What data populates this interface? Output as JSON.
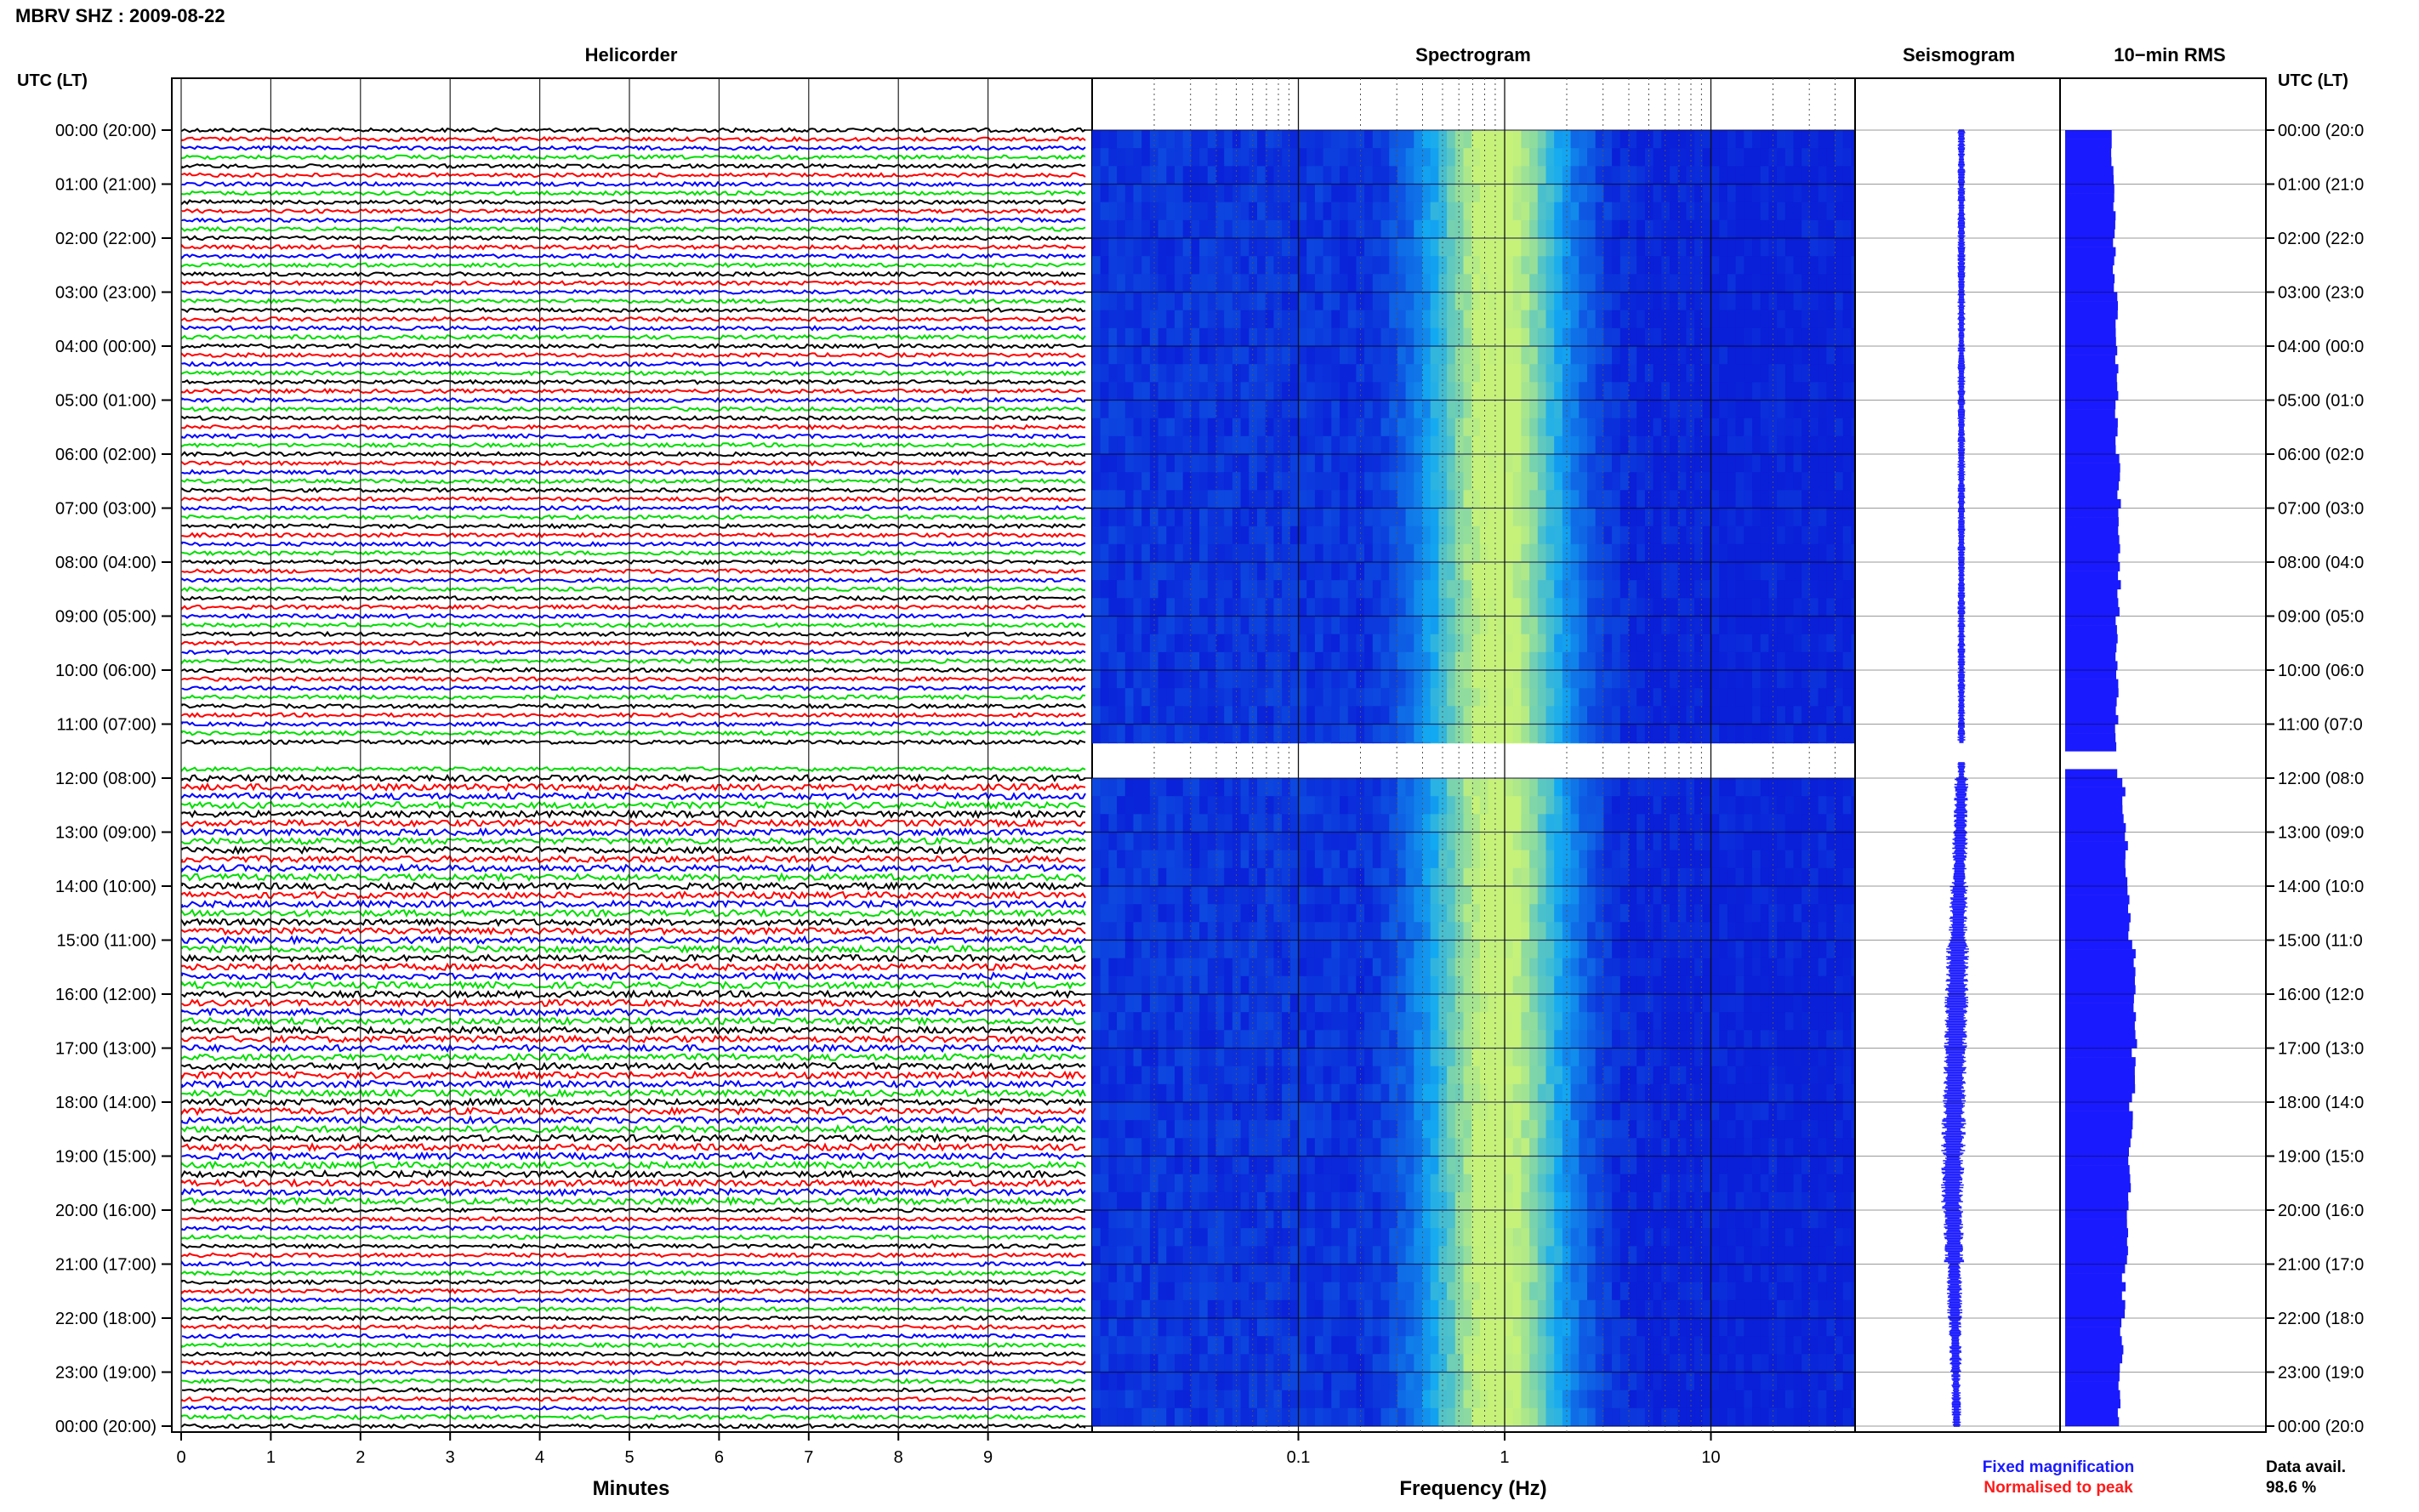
{
  "station_title": "MBRV SHZ : 2009-08-22",
  "panel_titles": {
    "helicorder": "Helicorder",
    "spectrogram": "Spectrogram",
    "seismogram": "Seismogram",
    "rms": "10−min RMS"
  },
  "axis_header_left": "UTC (LT)",
  "axis_header_right": "UTC (LT)",
  "xlabel_helicorder": "Minutes",
  "xlabel_spectrogram": "Frequency (Hz)",
  "legend": {
    "fixed": "Fixed magnification",
    "normalised": "Normalised to peak",
    "fixed_color": "#1a1aff",
    "normalised_color": "#ff1a1a"
  },
  "data_availability": {
    "label": "Data avail.",
    "value": "98.6 %"
  },
  "colors": {
    "trace_cycle": [
      "#000000",
      "#ff0000",
      "#0000ff",
      "#00dd00"
    ],
    "spectro_dark": "#0a1fd8",
    "spectro_mid": "#13a9f2",
    "spectro_peak": "#c6f27a",
    "rms_bar": "#1a1aff"
  },
  "chart_data": [
    {
      "type": "line",
      "title": "Helicorder",
      "xlabel": "Minutes",
      "x_ticks": [
        "0",
        "1",
        "2",
        "3",
        "4",
        "5",
        "6",
        "7",
        "8",
        "9"
      ],
      "xlim": [
        0,
        10
      ],
      "time_labels_left": [
        "00:00 (20:00)",
        "01:00 (21:00)",
        "02:00 (22:00)",
        "03:00 (23:00)",
        "04:00 (00:00)",
        "05:00 (01:00)",
        "06:00 (02:00)",
        "07:00 (03:00)",
        "08:00 (04:00)",
        "09:00 (05:00)",
        "10:00 (06:00)",
        "11:00 (07:00)",
        "12:00 (08:00)",
        "13:00 (09:00)",
        "14:00 (10:00)",
        "15:00 (11:00)",
        "16:00 (12:00)",
        "17:00 (13:00)",
        "18:00 (14:00)",
        "19:00 (15:00)",
        "20:00 (16:00)",
        "21:00 (17:00)",
        "22:00 (18:00)",
        "23:00 (19:00)",
        "00:00 (20:00)"
      ],
      "time_labels_right": [
        "00:00 (20:0",
        "01:00 (21:0",
        "02:00 (22:0",
        "03:00 (23:0",
        "04:00 (00:0",
        "05:00 (01:0",
        "06:00 (02:0",
        "07:00 (03:0",
        "08:00 (04:0",
        "09:00 (05:0",
        "10:00 (06:0",
        "11:00 (07:0",
        "12:00 (08:0",
        "13:00 (09:0",
        "14:00 (10:0",
        "15:00 (11:0",
        "16:00 (12:0",
        "17:00 (13:0",
        "18:00 (14:0",
        "19:00 (15:0",
        "20:00 (16:0",
        "21:00 (17:0",
        "22:00 (18:0",
        "23:00 (19:0",
        "00:00 (20:0"
      ],
      "traces_per_hour": 6,
      "gap_hours": [
        11.35,
        11.7
      ]
    },
    {
      "type": "heatmap",
      "title": "Spectrogram",
      "xlabel": "Frequency (Hz)",
      "x_scale": "log",
      "xlim": [
        0.01,
        50
      ],
      "x_tick_labels": [
        "0.1",
        "1",
        "10"
      ],
      "peak_frequency_hz": 1.0
    },
    {
      "type": "line",
      "title": "Seismogram",
      "amplitude_by_hour": [
        0.5,
        0.5,
        0.5,
        0.5,
        0.5,
        0.5,
        0.5,
        0.5,
        0.5,
        0.5,
        0.5,
        0.5,
        0.9,
        1.0,
        1.2,
        1.5,
        1.6,
        1.5,
        1.6,
        1.5,
        1.3,
        1.0,
        0.8,
        0.6
      ]
    },
    {
      "type": "bar",
      "title": "10−min RMS",
      "rms_by_hour": [
        1.0,
        1.05,
        1.05,
        1.1,
        1.1,
        1.1,
        1.15,
        1.15,
        1.15,
        1.1,
        1.1,
        1.1,
        1.25,
        1.3,
        1.35,
        1.45,
        1.5,
        1.45,
        1.4,
        1.35,
        1.3,
        1.25,
        1.2,
        1.15
      ]
    }
  ]
}
